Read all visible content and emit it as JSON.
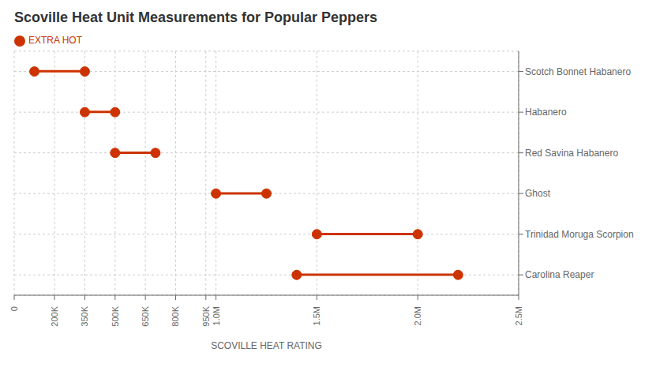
{
  "chart_data": {
    "type": "dumbbell",
    "title": "Scoville Heat Unit Measurements for Popular Peppers",
    "x_label": "SCOVILLE HEAT RATING",
    "categories": [
      "Scotch Bonnet Habanero",
      "Habanero",
      "Red Savina Habanero",
      "Ghost",
      "Trinidad Moruga Scorpion",
      "Carolina Reaper"
    ],
    "series": [
      {
        "name": "EXTRA HOT",
        "color": "#cc3300",
        "low": [
          100000,
          350000,
          500000,
          1000000,
          1500000,
          1400000
        ],
        "high": [
          350000,
          500000,
          700000,
          1250000,
          2000000,
          2200000
        ]
      }
    ],
    "xlim": [
      0,
      2500000
    ],
    "xticks": [
      0,
      {
        "value": 200000,
        "label": "200K"
      },
      {
        "value": 350000,
        "label": "350K"
      },
      {
        "value": 500000,
        "label": "500K"
      },
      {
        "value": 650000,
        "label": "650K"
      },
      {
        "value": 800000,
        "label": "800K"
      },
      {
        "value": 950000,
        "label": "950K"
      },
      {
        "value": 1000000,
        "label": "1.0M"
      },
      {
        "value": 1500000,
        "label": "1.5M"
      },
      {
        "value": 2000000,
        "label": "2.0M"
      },
      {
        "value": 2500000,
        "label": "2.5M"
      }
    ],
    "grid": true,
    "legend": "upper left"
  }
}
